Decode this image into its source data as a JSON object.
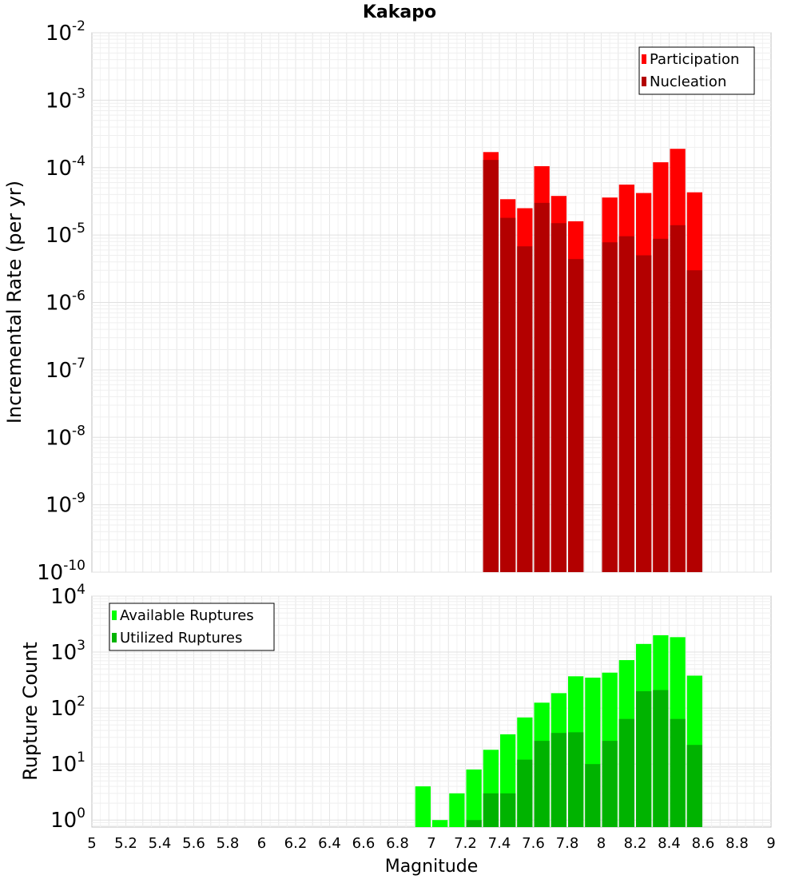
{
  "title": "Kakapo",
  "chart_data": [
    {
      "type": "bar",
      "ylabel": "Incremental Rate (per yr)",
      "yscale": "log",
      "ylim": [
        1e-10,
        0.01
      ],
      "y_tick_exponents": [
        "-10",
        "-9",
        "-8",
        "-7",
        "-6",
        "-5",
        "-4",
        "-3",
        "-2"
      ],
      "grid": true,
      "legend_position": "top-right",
      "x": [
        7.35,
        7.45,
        7.55,
        7.65,
        7.75,
        7.85,
        8.05,
        8.15,
        8.25,
        8.35,
        8.45,
        8.55
      ],
      "series": [
        {
          "name": "Participation",
          "color": "#ff0000",
          "values": [
            0.00017,
            3.4e-05,
            2.5e-05,
            0.000105,
            3.8e-05,
            1.6e-05,
            3.6e-05,
            5.6e-05,
            4.2e-05,
            0.00012,
            0.00019,
            4.3e-05
          ]
        },
        {
          "name": "Nucleation",
          "color": "#b30000",
          "values": [
            0.00013,
            1.8e-05,
            6.8e-06,
            3e-05,
            1.5e-05,
            4.4e-06,
            7.8e-06,
            9.6e-06,
            5e-06,
            8.8e-06,
            1.4e-05,
            3e-06
          ]
        }
      ]
    },
    {
      "type": "bar",
      "ylabel": "Rupture Count",
      "yscale": "log",
      "ylim": [
        0.75,
        10000
      ],
      "y_tick_exponents": [
        "0",
        "1",
        "2",
        "3",
        "4"
      ],
      "grid": true,
      "legend_position": "top-left",
      "x": [
        6.95,
        7.05,
        7.15,
        7.25,
        7.35,
        7.45,
        7.55,
        7.65,
        7.75,
        7.85,
        7.95,
        8.05,
        8.15,
        8.25,
        8.35,
        8.45,
        8.55
      ],
      "series": [
        {
          "name": "Available Ruptures",
          "color": "#00ff00",
          "values": [
            4,
            1,
            3,
            8,
            18,
            34,
            68,
            125,
            185,
            370,
            350,
            430,
            720,
            1400,
            2000,
            1850,
            380
          ]
        },
        {
          "name": "Utilized Ruptures",
          "color": "#00b300",
          "values": [
            0,
            0,
            0,
            1,
            3,
            3,
            12,
            26,
            36,
            37,
            10,
            26,
            64,
            200,
            210,
            64,
            22
          ]
        }
      ]
    }
  ],
  "xaxis": {
    "label": "Magnitude",
    "xlim": [
      5,
      9
    ],
    "ticks": [
      "5",
      "5.2",
      "5.4",
      "5.6",
      "5.8",
      "6",
      "6.2",
      "6.4",
      "6.6",
      "6.8",
      "7",
      "7.2",
      "7.4",
      "7.6",
      "7.8",
      "8",
      "8.2",
      "8.4",
      "8.6",
      "8.8",
      "9"
    ]
  }
}
